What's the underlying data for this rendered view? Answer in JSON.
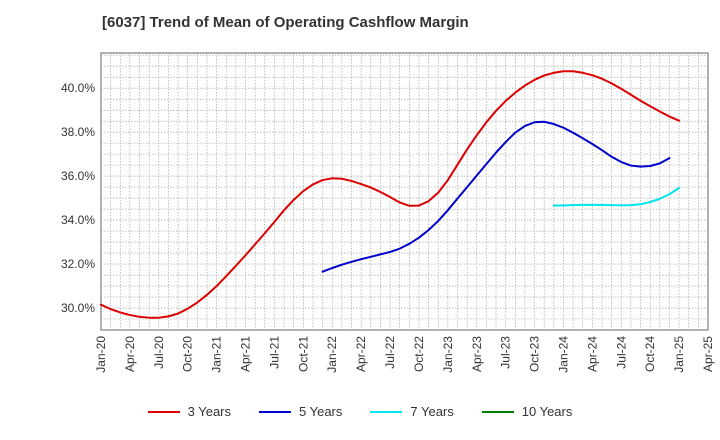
{
  "chart_data": {
    "type": "line",
    "title": "[6037]  Trend of Mean of Operating Cashflow Margin",
    "xlabel": "",
    "ylabel": "",
    "x_ticks": [
      "Jan-20",
      "Apr-20",
      "Jul-20",
      "Oct-20",
      "Jan-21",
      "Apr-21",
      "Jul-21",
      "Oct-21",
      "Jan-22",
      "Apr-22",
      "Jul-22",
      "Oct-22",
      "Jan-23",
      "Apr-23",
      "Jul-23",
      "Oct-23",
      "Jan-24",
      "Apr-24",
      "Jul-24",
      "Oct-24",
      "Jan-25",
      "Apr-25"
    ],
    "y_ticks": [
      "30.0%",
      "32.0%",
      "34.0%",
      "36.0%",
      "38.0%",
      "40.0%"
    ],
    "ylim": [
      29.0,
      41.6
    ],
    "grid": true,
    "legend_position": "bottom",
    "series": [
      {
        "name": "3 Years",
        "color": "#dd0000",
        "start": "Jan-20",
        "values": [
          30.15,
          29.95,
          29.8,
          29.68,
          29.6,
          29.56,
          29.56,
          29.62,
          29.75,
          29.97,
          30.25,
          30.6,
          31.0,
          31.45,
          31.92,
          32.4,
          32.9,
          33.4,
          33.92,
          34.45,
          34.92,
          35.32,
          35.62,
          35.82,
          35.9,
          35.88,
          35.78,
          35.64,
          35.48,
          35.28,
          35.05,
          34.8,
          34.65,
          34.66,
          34.86,
          35.25,
          35.82,
          36.52,
          37.22,
          37.86,
          38.45,
          38.97,
          39.42,
          39.8,
          40.12,
          40.38,
          40.58,
          40.7,
          40.77,
          40.77,
          40.7,
          40.59,
          40.43,
          40.22,
          39.97,
          39.7,
          39.43,
          39.18,
          38.94,
          38.71,
          38.52
        ]
      },
      {
        "name": "5 Years",
        "color": "#0000cc",
        "start": "Dec-21",
        "values": [
          31.65,
          31.82,
          31.97,
          32.1,
          32.22,
          32.33,
          32.44,
          32.55,
          32.7,
          32.92,
          33.2,
          33.55,
          33.96,
          34.45,
          34.98,
          35.5,
          36.03,
          36.55,
          37.07,
          37.55,
          37.98,
          38.28,
          38.45,
          38.47,
          38.37,
          38.2,
          37.97,
          37.72,
          37.46,
          37.18,
          36.88,
          36.64,
          36.48,
          36.43,
          36.46,
          36.58,
          36.82
        ]
      },
      {
        "name": "7 Years",
        "color": "#00e5ee",
        "start": "Dec-23",
        "values": [
          34.66,
          34.67,
          34.68,
          34.69,
          34.69,
          34.69,
          34.68,
          34.67,
          34.68,
          34.72,
          34.82,
          34.97,
          35.18,
          35.46
        ]
      },
      {
        "name": "10 Years",
        "color": "#008000",
        "start": "Jan-20",
        "values": []
      }
    ]
  }
}
